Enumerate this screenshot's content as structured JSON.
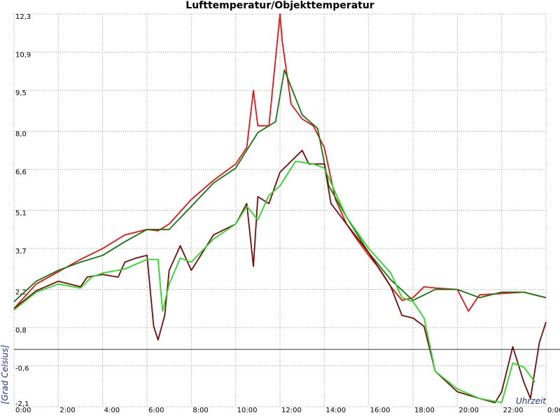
{
  "chart_data": {
    "type": "line",
    "title": "Lufttemperatur/Objekttemperatur",
    "y_label": "[Grad Celsius]",
    "x_label": "Uhrzeit",
    "grid": true,
    "zero_line": true,
    "xlim": [
      0,
      24
    ],
    "xticks": [
      {
        "value": 0,
        "label": "0:00"
      },
      {
        "value": 2,
        "label": "2:00"
      },
      {
        "value": 4,
        "label": "4:00"
      },
      {
        "value": 6,
        "label": "6:00"
      },
      {
        "value": 8,
        "label": "8:00"
      },
      {
        "value": 10,
        "label": "10:00"
      },
      {
        "value": 12,
        "label": "12:00"
      },
      {
        "value": 14,
        "label": "14:00"
      },
      {
        "value": 16,
        "label": "16:00"
      },
      {
        "value": 18,
        "label": "18:00"
      },
      {
        "value": 20,
        "label": "20:00"
      },
      {
        "value": 22,
        "label": "22:00"
      },
      {
        "value": 24,
        "label": "0:00"
      }
    ],
    "ylim": [
      -2.1,
      12.3
    ],
    "yticks": [
      {
        "value": -2.1,
        "label": "-2,1"
      },
      {
        "value": -0.6,
        "label": "-0,6"
      },
      {
        "value": 0.8,
        "label": "0,8"
      },
      {
        "value": 2.2,
        "label": "2,2"
      },
      {
        "value": 3.7,
        "label": "3,7"
      },
      {
        "value": 5.1,
        "label": "5,1"
      },
      {
        "value": 6.6,
        "label": "6,6"
      },
      {
        "value": 8.0,
        "label": "8,0"
      },
      {
        "value": 9.5,
        "label": "9,5"
      },
      {
        "value": 10.9,
        "label": "10,9"
      },
      {
        "value": 12.3,
        "label": "12,3"
      }
    ],
    "series": [
      {
        "color": "#ee1111",
        "x": [
          0,
          1,
          2,
          3,
          4,
          5,
          6,
          6.5,
          7,
          8,
          9,
          10,
          10.5,
          10.8,
          11,
          11.5,
          12,
          12.1,
          12.5,
          13,
          13.5,
          14,
          14.5,
          15,
          15.5,
          16,
          16.5,
          17,
          17.5,
          18,
          18.5,
          19,
          20,
          20.5,
          21,
          22,
          23,
          24
        ],
        "values": [
          1.5,
          2.4,
          2.85,
          3.3,
          3.7,
          4.2,
          4.4,
          4.35,
          4.6,
          5.5,
          6.2,
          6.8,
          7.4,
          9.5,
          8.2,
          8.2,
          12.3,
          11.3,
          9.0,
          8.45,
          8.2,
          7.4,
          5.5,
          4.6,
          4.0,
          3.45,
          2.95,
          2.3,
          1.8,
          1.9,
          2.3,
          2.25,
          2.2,
          1.4,
          2.0,
          2.05,
          2.1,
          1.9
        ]
      },
      {
        "color": "#117711",
        "x": [
          0,
          1,
          2,
          3,
          4,
          5,
          6,
          7,
          8,
          9,
          10,
          11,
          11.8,
          12.2,
          13,
          13.7,
          14.2,
          15,
          16,
          17,
          18,
          18.5,
          19,
          20,
          21,
          22,
          23,
          24
        ],
        "values": [
          1.75,
          2.5,
          2.9,
          3.2,
          3.45,
          3.95,
          4.4,
          4.4,
          5.25,
          6.1,
          6.65,
          7.95,
          8.35,
          10.25,
          8.6,
          8.1,
          6.0,
          4.85,
          3.55,
          2.55,
          1.8,
          2.0,
          2.2,
          2.2,
          1.9,
          2.1,
          2.1,
          1.9
        ]
      },
      {
        "color": "#7a0a0a",
        "x": [
          0,
          1,
          2,
          3,
          3.3,
          4,
          4.7,
          5,
          5.5,
          6,
          6.3,
          6.5,
          6.8,
          7,
          7.5,
          8,
          8.5,
          9,
          10,
          10.5,
          10.8,
          11,
          11.5,
          12,
          13,
          13.3,
          14,
          14.3,
          15,
          16,
          17,
          17.5,
          18,
          18.5,
          19,
          20,
          21,
          21.7,
          22,
          22.5,
          23,
          23.3,
          23.7,
          24
        ],
        "values": [
          1.5,
          2.15,
          2.5,
          2.3,
          2.65,
          2.75,
          2.65,
          3.2,
          3.35,
          3.45,
          0.85,
          0.35,
          1.25,
          2.9,
          3.8,
          2.9,
          3.55,
          4.2,
          4.6,
          5.35,
          3.05,
          5.6,
          5.35,
          6.5,
          7.3,
          6.8,
          6.8,
          5.35,
          4.6,
          3.55,
          2.3,
          1.25,
          1.15,
          0.85,
          -0.8,
          -1.55,
          -1.8,
          -1.95,
          -1.55,
          0.1,
          -1.2,
          -1.8,
          0.25,
          1.0
        ]
      },
      {
        "color": "#22dd22",
        "x": [
          0,
          1,
          2,
          3,
          3.5,
          4,
          5,
          6,
          6.5,
          6.7,
          7,
          7.5,
          8,
          9,
          10,
          10.5,
          11,
          11.5,
          12,
          12.7,
          13.5,
          14,
          15,
          16,
          17,
          17.5,
          18,
          18.5,
          19,
          20,
          21,
          22,
          22.5,
          23,
          23.5
        ],
        "values": [
          1.45,
          2.1,
          2.4,
          2.25,
          2.65,
          2.8,
          2.95,
          3.3,
          3.3,
          1.4,
          2.4,
          3.35,
          3.2,
          4.05,
          4.6,
          5.25,
          4.75,
          5.65,
          6.0,
          6.9,
          6.8,
          6.65,
          4.85,
          3.7,
          2.8,
          1.9,
          1.75,
          1.15,
          -0.8,
          -1.45,
          -1.8,
          -1.95,
          -0.5,
          -0.65,
          -1.2
        ]
      }
    ]
  }
}
